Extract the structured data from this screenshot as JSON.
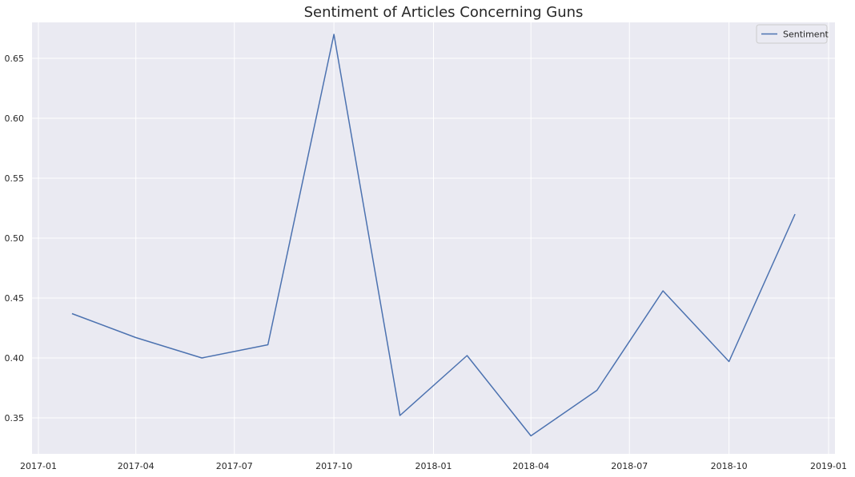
{
  "chart_data": {
    "type": "line",
    "title": "Sentiment of Articles Concerning Guns",
    "xlabel": "",
    "ylabel": "",
    "x": [
      "2017-02-01",
      "2017-04-01",
      "2017-06-01",
      "2017-08-01",
      "2017-10-01",
      "2017-12-01",
      "2018-02-01",
      "2018-04-01",
      "2018-06-01",
      "2018-08-01",
      "2018-10-01",
      "2018-12-01"
    ],
    "series": [
      {
        "name": "Sentiment",
        "color": "#4c72b0",
        "values": [
          0.437,
          0.417,
          0.4,
          0.411,
          0.67,
          0.352,
          0.402,
          0.335,
          0.373,
          0.456,
          0.397,
          0.52
        ]
      }
    ],
    "xlim": [
      "2017-01-01",
      "2019-01-01"
    ],
    "ylim": [
      0.32,
      0.68
    ],
    "x_ticks": [
      {
        "date": "2017-01-01",
        "label": "2017-01"
      },
      {
        "date": "2017-04-01",
        "label": "2017-04"
      },
      {
        "date": "2017-07-01",
        "label": "2017-07"
      },
      {
        "date": "2017-10-01",
        "label": "2017-10"
      },
      {
        "date": "2018-01-01",
        "label": "2018-01"
      },
      {
        "date": "2018-04-01",
        "label": "2018-04"
      },
      {
        "date": "2018-07-01",
        "label": "2018-07"
      },
      {
        "date": "2018-10-01",
        "label": "2018-10"
      },
      {
        "date": "2019-01-01",
        "label": "2019-01"
      }
    ],
    "y_ticks": [
      {
        "value": 0.35,
        "label": "0.35"
      },
      {
        "value": 0.4,
        "label": "0.40"
      },
      {
        "value": 0.45,
        "label": "0.45"
      },
      {
        "value": 0.5,
        "label": "0.50"
      },
      {
        "value": 0.55,
        "label": "0.55"
      },
      {
        "value": 0.6,
        "label": "0.60"
      },
      {
        "value": 0.65,
        "label": "0.65"
      }
    ],
    "grid": true,
    "legend_position": "top-right",
    "background_color": "#eaeaf2",
    "grid_color": "#ffffff"
  }
}
